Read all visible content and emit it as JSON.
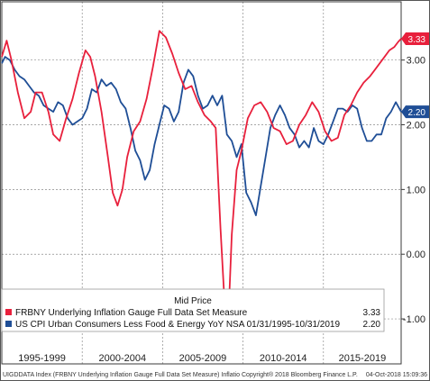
{
  "chart_data": {
    "type": "line",
    "title": "",
    "legend": {
      "title": "Mid Price",
      "placement": "bottom-left",
      "entries": [
        {
          "label": "FRBNY Underlying Inflation Gauge Full Data Set Measure",
          "value": "3.33",
          "color": "#e8203c"
        },
        {
          "label": "US CPI Urban Consumers Less Food & Energy YoY NSA 01/31/1995-10/31/2019",
          "value": "2.20",
          "color": "#1f4e96"
        }
      ]
    },
    "xlabel": "",
    "ylabel": "",
    "x_range": [
      1995.0,
      2019.833
    ],
    "ylim": [
      -1.5,
      3.9
    ],
    "y_axis_position": "right",
    "y_ticks": [
      -1.0,
      0.0,
      1.0,
      2.0,
      3.0
    ],
    "y_tick_labels": [
      "-1.00",
      "0.00",
      "1.00",
      "2.00",
      "3.00"
    ],
    "x_period_labels": [
      "1995-1999",
      "2000-2004",
      "2005-2009",
      "2010-2014",
      "2015-2019"
    ],
    "grid": true,
    "series": [
      {
        "name": "FRBNY Underlying Inflation Gauge Full Data Set Measure",
        "color": "#e8203c",
        "last_value": "3.33",
        "x": [
          1995.0,
          1995.3,
          1995.6,
          1996.0,
          1996.4,
          1996.8,
          1997.1,
          1997.5,
          1997.9,
          1998.2,
          1998.6,
          1999.0,
          1999.4,
          1999.8,
          2000.2,
          2000.5,
          2000.8,
          2001.2,
          2001.6,
          2001.9,
          2002.2,
          2002.5,
          2002.8,
          2003.2,
          2003.6,
          2004.0,
          2004.4,
          2004.8,
          2005.2,
          2005.6,
          2006.0,
          2006.4,
          2006.8,
          2007.2,
          2007.6,
          2008.0,
          2008.3,
          2008.6,
          2008.85,
          2009.1,
          2009.3,
          2009.6,
          2009.9,
          2010.3,
          2010.7,
          2011.1,
          2011.5,
          2011.9,
          2012.3,
          2012.7,
          2013.1,
          2013.5,
          2013.9,
          2014.3,
          2014.7,
          2015.1,
          2015.5,
          2015.9,
          2016.3,
          2016.7,
          2017.1,
          2017.5,
          2017.9,
          2018.2,
          2018.5,
          2018.8,
          2019.1,
          2019.4,
          2019.65,
          2019.833
        ],
        "y": [
          3.05,
          3.3,
          3.0,
          2.5,
          2.1,
          2.2,
          2.5,
          2.5,
          2.2,
          1.85,
          1.75,
          2.1,
          2.4,
          2.8,
          3.15,
          3.05,
          2.75,
          2.2,
          1.5,
          0.95,
          0.75,
          1.0,
          1.5,
          1.9,
          2.05,
          2.4,
          2.9,
          3.45,
          3.35,
          3.1,
          2.8,
          2.55,
          2.6,
          2.35,
          2.15,
          2.05,
          1.95,
          0.4,
          -0.75,
          -0.95,
          0.3,
          1.3,
          1.6,
          2.1,
          2.3,
          2.35,
          2.2,
          1.95,
          1.9,
          1.7,
          1.75,
          2.0,
          2.15,
          2.35,
          2.2,
          1.9,
          1.75,
          1.8,
          2.15,
          2.3,
          2.5,
          2.65,
          2.75,
          2.85,
          2.95,
          3.05,
          3.15,
          3.2,
          3.28,
          3.33
        ]
      },
      {
        "name": "US CPI Urban Consumers Less Food & Energy YoY NSA 01/31/1995-10/31/2019",
        "color": "#1f4e96",
        "last_value": "2.20",
        "x": [
          1995.0,
          1995.2,
          1995.5,
          1995.8,
          1996.1,
          1996.4,
          1996.7,
          1997.0,
          1997.3,
          1997.6,
          1997.9,
          1998.2,
          1998.5,
          1998.8,
          1999.1,
          1999.4,
          1999.7,
          2000.0,
          2000.3,
          2000.6,
          2000.9,
          2001.2,
          2001.5,
          2001.8,
          2002.1,
          2002.4,
          2002.7,
          2003.0,
          2003.3,
          2003.6,
          2003.9,
          2004.2,
          2004.5,
          2004.8,
          2005.1,
          2005.4,
          2005.7,
          2006.0,
          2006.3,
          2006.6,
          2006.9,
          2007.2,
          2007.5,
          2007.8,
          2008.1,
          2008.4,
          2008.7,
          2009.0,
          2009.3,
          2009.6,
          2009.9,
          2010.2,
          2010.5,
          2010.8,
          2011.1,
          2011.4,
          2011.7,
          2012.0,
          2012.3,
          2012.6,
          2012.9,
          2013.2,
          2013.5,
          2013.8,
          2014.1,
          2014.4,
          2014.7,
          2015.0,
          2015.3,
          2015.6,
          2015.9,
          2016.2,
          2016.5,
          2016.8,
          2017.1,
          2017.4,
          2017.7,
          2018.0,
          2018.3,
          2018.6,
          2018.9,
          2019.2,
          2019.5,
          2019.833
        ],
        "y": [
          2.95,
          3.05,
          3.0,
          2.85,
          2.75,
          2.7,
          2.6,
          2.5,
          2.45,
          2.3,
          2.25,
          2.2,
          2.35,
          2.3,
          2.1,
          2.0,
          2.05,
          2.1,
          2.25,
          2.55,
          2.5,
          2.7,
          2.6,
          2.65,
          2.55,
          2.35,
          2.25,
          1.95,
          1.6,
          1.45,
          1.15,
          1.3,
          1.7,
          2.0,
          2.3,
          2.25,
          2.05,
          2.2,
          2.65,
          2.85,
          2.75,
          2.45,
          2.25,
          2.3,
          2.45,
          2.3,
          2.45,
          1.85,
          1.75,
          1.5,
          1.7,
          0.95,
          0.8,
          0.6,
          1.05,
          1.5,
          1.95,
          2.15,
          2.3,
          2.15,
          1.95,
          1.85,
          1.65,
          1.75,
          1.65,
          1.95,
          1.75,
          1.7,
          1.85,
          2.05,
          2.25,
          2.25,
          2.2,
          2.3,
          2.25,
          1.95,
          1.75,
          1.75,
          1.85,
          1.85,
          2.1,
          2.2,
          2.35,
          2.2
        ]
      }
    ]
  },
  "footer": {
    "left": "UIGDDATA Index (FRBNY Underlying Inflation Gauge Full Data Set Measure) Inflatio",
    "right": "04-Oct-2018 15:09:36",
    "center": "Copyright® 2018 Bloomberg Finance L.P."
  }
}
